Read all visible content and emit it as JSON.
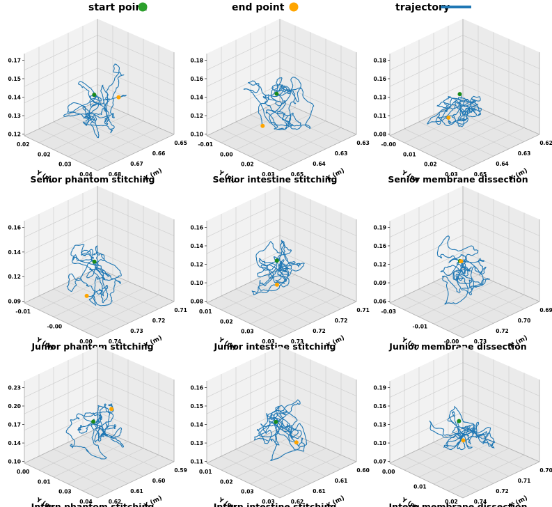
{
  "legend": {
    "start_label": "start point",
    "end_label": "end point",
    "trajectory_label": "trajectory",
    "start_color": "#2ca02c",
    "end_color": "#ffa500",
    "trajectory_color": "#1f77b4"
  },
  "chart_data": [
    {
      "type": "line3d",
      "title": "Senior phantom stitching",
      "xlabel": "X (m)",
      "ylabel": "Y (m)",
      "zlabel": "",
      "x_ticks": [
        "0.65",
        "0.66",
        "0.67",
        "0.68"
      ],
      "y_ticks": [
        "0.02",
        "0.02",
        "0.03",
        "0.04"
      ],
      "z_ticks": [
        "0.12",
        "0.13",
        "0.14",
        "0.15",
        "0.17"
      ]
    },
    {
      "type": "line3d",
      "title": "Senior intestine stitching",
      "xlabel": "X (m)",
      "ylabel": "Y (m)",
      "zlabel": "",
      "x_ticks": [
        "0.63",
        "0.63",
        "0.64",
        "0.65"
      ],
      "y_ticks": [
        "-0.01",
        "0.00",
        "0.02",
        "0.03"
      ],
      "z_ticks": [
        "0.10",
        "0.12",
        "0.14",
        "0.16",
        "0.18"
      ]
    },
    {
      "type": "line3d",
      "title": "Senior membrane dissection",
      "xlabel": "X (m)",
      "ylabel": "Y (m)",
      "zlabel": "",
      "x_ticks": [
        "0.62",
        "0.63",
        "0.64",
        "0.65"
      ],
      "y_ticks": [
        "-0.00",
        "0.01",
        "0.02",
        "0.03"
      ],
      "z_ticks": [
        "0.08",
        "0.11",
        "0.13",
        "0.16",
        "0.18"
      ]
    },
    {
      "type": "line3d",
      "title": "Junior phantom stitching",
      "xlabel": "X (m)",
      "ylabel": "Y (m)",
      "zlabel": "",
      "x_ticks": [
        "0.71",
        "0.72",
        "0.73",
        "0.74"
      ],
      "y_ticks": [
        "-0.01",
        "-0.00",
        "0.00"
      ],
      "z_ticks": [
        "0.09",
        "0.12",
        "0.14",
        "0.16"
      ]
    },
    {
      "type": "line3d",
      "title": "Junior intestine stitching",
      "xlabel": "X (m)",
      "ylabel": "Y (m)",
      "zlabel": "",
      "x_ticks": [
        "0.71",
        "0.72",
        "0.72",
        "0.73"
      ],
      "y_ticks": [
        "0.01",
        "0.02",
        "0.03",
        "0.03"
      ],
      "z_ticks": [
        "0.08",
        "0.10",
        "0.12",
        "0.14",
        "0.16"
      ]
    },
    {
      "type": "line3d",
      "title": "Junior membrane dissection",
      "xlabel": "X (m)",
      "ylabel": "Y (m)",
      "zlabel": "",
      "x_ticks": [
        "0.69",
        "0.70",
        "0.72",
        "0.73"
      ],
      "y_ticks": [
        "-0.03",
        "-0.01",
        "-0.00"
      ],
      "z_ticks": [
        "0.06",
        "0.09",
        "0.12",
        "0.16",
        "0.19"
      ]
    },
    {
      "type": "line3d",
      "title": "Intern phantom stitching",
      "xlabel": "X (m)",
      "ylabel": "Y (m)",
      "zlabel": "",
      "x_ticks": [
        "0.59",
        "0.60",
        "0.61",
        "0.62"
      ],
      "y_ticks": [
        "0.00",
        "0.01",
        "0.03",
        "0.04"
      ],
      "z_ticks": [
        "0.10",
        "0.14",
        "0.17",
        "0.20",
        "0.23"
      ]
    },
    {
      "type": "line3d",
      "title": "Intern intestine stitching",
      "xlabel": "X (m)",
      "ylabel": "Y (m)",
      "zlabel": "",
      "x_ticks": [
        "0.60",
        "0.61",
        "0.61",
        "0.62"
      ],
      "y_ticks": [
        "0.01",
        "0.02",
        "0.03",
        "0.03"
      ],
      "z_ticks": [
        "0.11",
        "0.13",
        "0.14",
        "0.15",
        "0.16"
      ]
    },
    {
      "type": "line3d",
      "title": "Intern membrane dissection",
      "xlabel": "X (m)",
      "ylabel": "Y (m)",
      "zlabel": "",
      "x_ticks": [
        "0.70",
        "0.71",
        "0.72",
        "0.74"
      ],
      "y_ticks": [
        "0.00",
        "0.01",
        "0.02"
      ],
      "z_ticks": [
        "0.07",
        "0.10",
        "0.13",
        "0.16",
        "0.19"
      ]
    }
  ]
}
